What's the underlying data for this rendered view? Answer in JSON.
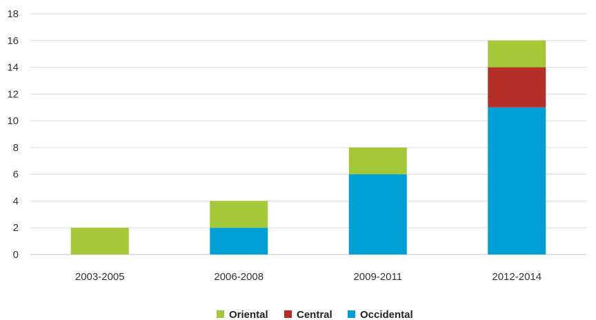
{
  "chart_data": {
    "type": "bar",
    "stacked": true,
    "categories": [
      "2003-2005",
      "2006-2008",
      "2009-2011",
      "2012-2014"
    ],
    "series": [
      {
        "name": "Occidental",
        "values": [
          0,
          2,
          6,
          11
        ],
        "color": "#009fd6"
      },
      {
        "name": "Central",
        "values": [
          0,
          0,
          0,
          3
        ],
        "color": "#b52f29"
      },
      {
        "name": "Oriental",
        "values": [
          2,
          2,
          2,
          2
        ],
        "color": "#a5c838"
      }
    ],
    "legend_order": [
      "Oriental",
      "Central",
      "Occidental"
    ],
    "title": "",
    "xlabel": "",
    "ylabel": "",
    "ylim": [
      0,
      18
    ],
    "yticks": [
      0,
      2,
      4,
      6,
      8,
      10,
      12,
      14,
      16,
      18
    ],
    "grid": true,
    "legend_position": "bottom"
  }
}
